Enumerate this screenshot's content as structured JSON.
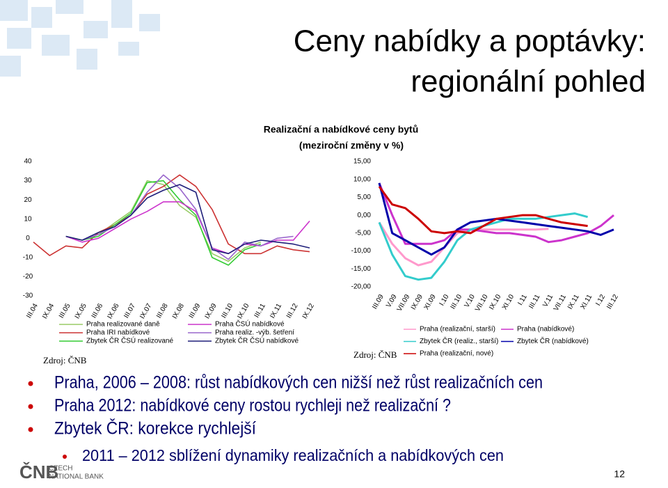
{
  "slide": {
    "title_line1": "Ceny nabídky a poptávky:",
    "title_line2": "regionální pohled",
    "chart_title_line1": "Realizační a nabídkové ceny bytů",
    "chart_title_line2": "(meziroční změny v %)",
    "bullets": [
      "Praha, 2006 – 2008: růst nabídkových cen nižší než růst realizačních cen",
      "Praha 2012: nabídkové ceny rostou rychleji než realizační ?",
      "Zbytek ČR: korekce rychlejší"
    ],
    "sub_bullets": [
      "2011 – 2012 sblížení dynamiky realizačních a nabídkových cen"
    ],
    "logo_line1": "CZECH",
    "logo_line2": "NATIONAL BANK",
    "page_number": "12"
  },
  "chart_data": [
    {
      "type": "line",
      "source": "Zdroj: ČNB",
      "categories": [
        "III.04",
        "IX.04",
        "III.05",
        "IX.05",
        "III.06",
        "IX.06",
        "III.07",
        "IX.07",
        "III.08",
        "IX.08",
        "III.09",
        "IX.09",
        "III.10",
        "IX.10",
        "III.11",
        "IX.11",
        "III.12",
        "IX.12"
      ],
      "ylim": [
        -30,
        40
      ],
      "yticks": [
        -30,
        -20,
        -10,
        0,
        10,
        20,
        30,
        40
      ],
      "series": [
        {
          "name": "Praha realizované daně",
          "color": "#99cc66",
          "values": [
            null,
            null,
            1,
            -1,
            2,
            8,
            14,
            30,
            28,
            17,
            11,
            -8,
            -12,
            -5,
            -2,
            null,
            null,
            null
          ]
        },
        {
          "name": "Praha IRI nabídkové",
          "color": "#cc3333",
          "values": [
            -2,
            -9,
            -4,
            -5,
            3,
            7,
            12,
            23,
            27,
            33,
            27,
            15,
            -3,
            -8,
            -8,
            -4,
            -6,
            -7
          ]
        },
        {
          "name": "Zbytek ČR ČSÚ realizované",
          "color": "#33cc33",
          "values": [
            null,
            null,
            1,
            -1,
            1,
            7,
            13,
            29,
            30,
            20,
            12,
            -10,
            -14,
            -6,
            -3,
            null,
            null,
            null
          ]
        },
        {
          "name": "Praha ČSÚ nabídkové",
          "color": "#cc33cc",
          "values": [
            null,
            null,
            1,
            -2,
            0,
            5,
            10,
            14,
            19,
            19,
            14,
            -5,
            -8,
            -3,
            -4,
            -1,
            -1,
            9
          ]
        },
        {
          "name": "Praha realiz. -výb. šetření",
          "color": "#9966cc",
          "values": [
            null,
            null,
            null,
            -1,
            2,
            6,
            12,
            24,
            33,
            26,
            15,
            -5,
            -11,
            -2,
            -4,
            0,
            1,
            null
          ]
        },
        {
          "name": "Zbytek ČR ČSÚ nabídkové",
          "color": "#1f1f7a",
          "values": [
            null,
            null,
            1,
            -1,
            3,
            6,
            12,
            21,
            25,
            28,
            24,
            -6,
            -8,
            -3,
            -1,
            -2,
            -3,
            -5
          ]
        }
      ]
    },
    {
      "type": "line",
      "source": "Zdroj: ČNB",
      "categories": [
        "III.09",
        "V.09",
        "VII.09",
        "IX.09",
        "XI.09",
        "I.10",
        "III.10",
        "V.10",
        "VII.10",
        "IX.10",
        "XI.10",
        "I.11",
        "III.11",
        "V.11",
        "VII.11",
        "IX.11",
        "XI.11",
        "I.12",
        "III.12"
      ],
      "ylim": [
        -20,
        15
      ],
      "yticks": [
        {
          "value": -20,
          "label": "-20,00"
        },
        {
          "value": -15,
          "label": "-15,00"
        },
        {
          "value": -10,
          "label": "-10,00"
        },
        {
          "value": -5,
          "label": "-5,00"
        },
        {
          "value": 0,
          "label": "0,00"
        },
        {
          "value": 5,
          "label": "5,00"
        },
        {
          "value": 10,
          "label": "10,00"
        },
        {
          "value": 15,
          "label": "15,00"
        }
      ],
      "series": [
        {
          "name": "Praha (realizační, starší)",
          "color": "#ff99cc",
          "values": [
            -2,
            -8,
            -12,
            -14,
            -13,
            -9,
            -5,
            -4,
            -4,
            -4,
            -4,
            -4,
            -4,
            -3.8,
            null,
            null,
            null,
            null,
            null
          ]
        },
        {
          "name": "Praha (nabídkové)",
          "color": "#cc33cc",
          "values": [
            9,
            0,
            -8,
            -8,
            -8,
            -7,
            -4,
            -4,
            -4.5,
            -5,
            -5,
            -5.5,
            -6,
            -7.5,
            -7,
            -6,
            -5,
            -3,
            0
          ]
        },
        {
          "name": "Zbytek ČR (realiz., starší)",
          "color": "#33cccc",
          "values": [
            -2,
            -11,
            -17,
            -18,
            -17.5,
            -13,
            -7,
            -4,
            -3,
            -2,
            -1,
            -1,
            -1,
            -0.5,
            0,
            0.5,
            -0.5,
            null,
            null
          ]
        },
        {
          "name": "Zbytek ČR (nabídkové)",
          "color": "#0000aa",
          "values": [
            9,
            -5,
            -7,
            -9,
            -11,
            -9,
            -4,
            -2,
            -1.5,
            -1,
            -1.5,
            -2,
            -2.5,
            -3,
            -3.5,
            -4,
            -4.5,
            -5.5,
            -4
          ]
        },
        {
          "name": "Praha (realizační, nové)",
          "color": "#cc0000",
          "values": [
            8,
            3,
            2,
            -1,
            -4.5,
            -5,
            -4.5,
            -5,
            -3,
            -1,
            -0.5,
            0,
            0,
            -1,
            -2,
            -2.5,
            -3,
            null,
            null
          ]
        }
      ]
    }
  ]
}
